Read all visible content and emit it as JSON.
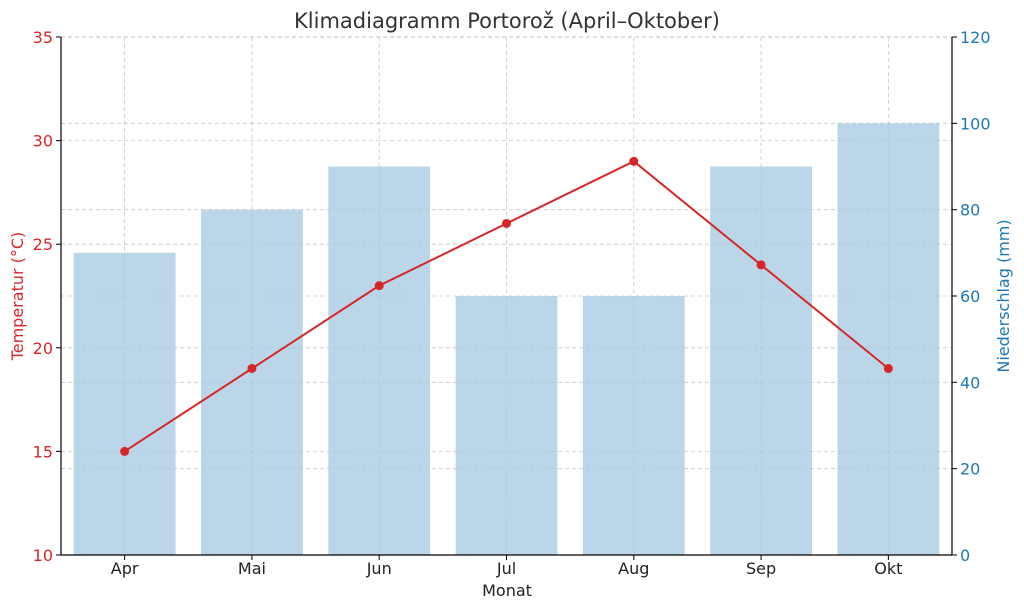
{
  "chart_data": {
    "type": "bar+line",
    "title": "Klimadiagramm Portorož (April–Oktober)",
    "xlabel": "Monat",
    "categories": [
      "Apr",
      "Mai",
      "Jun",
      "Jul",
      "Aug",
      "Sep",
      "Okt"
    ],
    "temperature": {
      "axis_label": "Temperatur (°C)",
      "values": [
        15,
        19,
        23,
        26,
        29,
        24,
        19
      ],
      "ylim": [
        10,
        35
      ],
      "ticks": [
        "10",
        "15",
        "20",
        "25",
        "30",
        "35"
      ],
      "color": "#d62728",
      "type": "line"
    },
    "precipitation": {
      "axis_label": "Niederschlag (mm)",
      "values": [
        70,
        80,
        90,
        60,
        60,
        90,
        100
      ],
      "ylim": [
        0,
        120
      ],
      "ticks": [
        "0",
        "20",
        "40",
        "60",
        "80",
        "100",
        "120"
      ],
      "color": "#1f77b4",
      "bar_color": "#a6c8e2",
      "type": "bar"
    },
    "grid": true
  }
}
